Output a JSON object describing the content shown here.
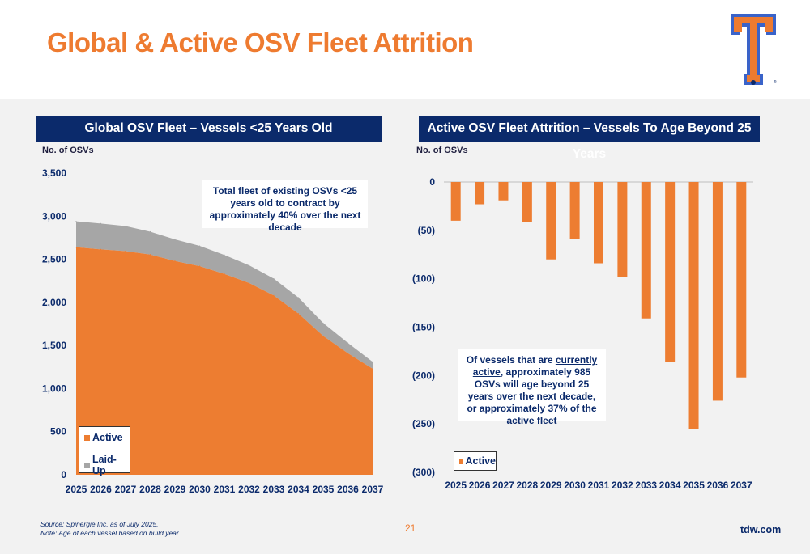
{
  "header": {
    "title": "Global & Active OSV Fleet Attrition"
  },
  "colors": {
    "title_orange": "#EE7B30",
    "navy": "#0B2A6B",
    "active_orange": "#ED7D31",
    "laidup_gray": "#A6A6A6",
    "background_gray": "#F2F2F2"
  },
  "left_panel": {
    "title": "Global OSV Fleet – Vessels <25 Years Old",
    "unit_label": "No. of OSVs",
    "callout": "Total fleet of existing OSVs <25 years old to contract by approximately 40% over the next decade",
    "legend": [
      "Active",
      "Laid-Up"
    ]
  },
  "right_panel": {
    "title_emph": "Active",
    "title_rest": " OSV Fleet Attrition – Vessels To Age Beyond 25 Years",
    "unit_label": "No. of OSVs",
    "callout": {
      "pre": "Of vessels that are ",
      "emph": "currently active",
      "post": ", approximately 985 OSVs will age beyond 25 years over the next decade, or approximately 37% of the active fleet"
    },
    "legend": [
      "Active"
    ]
  },
  "chart_data": [
    {
      "type": "area",
      "title": "Global OSV Fleet – Vessels <25 Years Old",
      "ylabel": "No. of OSVs",
      "ylim": [
        0,
        3500
      ],
      "yticks": [
        0,
        500,
        1000,
        1500,
        2000,
        2500,
        3000,
        3500
      ],
      "stacked": true,
      "legend_position": "bottom-left",
      "grid": false,
      "x": [
        "2025",
        "2026",
        "2027",
        "2028",
        "2029",
        "2030",
        "2031",
        "2032",
        "2033",
        "2034",
        "2035",
        "2036",
        "2037"
      ],
      "series": [
        {
          "name": "Active",
          "values": [
            2640,
            2615,
            2595,
            2555,
            2480,
            2420,
            2330,
            2225,
            2080,
            1870,
            1610,
            1410,
            1230
          ]
        },
        {
          "name": "Laid-Up",
          "values": [
            300,
            300,
            290,
            265,
            250,
            235,
            220,
            205,
            195,
            185,
            150,
            120,
            80
          ]
        }
      ]
    },
    {
      "type": "bar",
      "title": "Active OSV Fleet Attrition – Vessels To Age Beyond 25 Years",
      "ylabel": "No. of OSVs",
      "ylim": [
        -300,
        0
      ],
      "yticks": [
        0,
        -50,
        -100,
        -150,
        -200,
        -250,
        -300
      ],
      "ytick_labels": [
        "0",
        "(50)",
        "(100)",
        "(150)",
        "(200)",
        "(250)",
        "(300)"
      ],
      "legend_position": "bottom-left",
      "grid": false,
      "categories": [
        "2025",
        "2026",
        "2027",
        "2028",
        "2029",
        "2030",
        "2031",
        "2032",
        "2033",
        "2034",
        "2035",
        "2036",
        "2037"
      ],
      "series": [
        {
          "name": "Active",
          "values": [
            -40,
            -23,
            -19,
            -41,
            -80,
            -59,
            -84,
            -98,
            -141,
            -186,
            -255,
            -226,
            -202
          ]
        }
      ]
    }
  ],
  "footer": {
    "source_line1": "Source: Spinergie Inc. as of July 2025.",
    "source_line2": "Note: Age of each vessel based on build year",
    "page_number": "21",
    "site": "tdw.com"
  }
}
